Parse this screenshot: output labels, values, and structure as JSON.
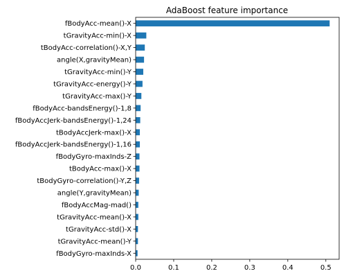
{
  "chart_data": {
    "type": "bar",
    "orientation": "horizontal",
    "title": "AdaBoost feature importance",
    "xlabel": "",
    "ylabel": "",
    "bar_color": "#1f77b4",
    "xlim": [
      0,
      0.535
    ],
    "xticks": [
      0.0,
      0.1,
      0.2,
      0.3,
      0.4,
      0.5
    ],
    "xtick_labels": [
      "0.0",
      "0.1",
      "0.2",
      "0.3",
      "0.4",
      "0.5"
    ],
    "grid": false,
    "categories": [
      "fBodyAcc-mean()-X",
      "tGravityAcc-min()-X",
      "tBodyAcc-correlation()-X,Y",
      "angle(X,gravityMean)",
      "tGravityAcc-min()-Y",
      "tGravityAcc-energy()-Y",
      "tGravityAcc-max()-Y",
      "fBodyAcc-bandsEnergy()-1,8",
      "fBodyAccJerk-bandsEnergy()-1,24",
      "tBodyAccJerk-max()-X",
      "fBodyAccJerk-bandsEnergy()-1,16",
      "fBodyGyro-maxInds-Z",
      "tBodyAcc-max()-X",
      "tBodyGyro-correlation()-Y,Z",
      "angle(Y,gravityMean)",
      "fBodyAccMag-mad()",
      "tGravityAcc-mean()-X",
      "tGravityAcc-std()-X",
      "tGravityAcc-mean()-Y",
      "fBodyGyro-maxInds-X"
    ],
    "values": [
      0.51,
      0.028,
      0.024,
      0.022,
      0.02,
      0.018,
      0.015,
      0.013,
      0.012,
      0.011,
      0.011,
      0.01,
      0.01,
      0.009,
      0.008,
      0.007,
      0.007,
      0.006,
      0.006,
      0.005
    ]
  }
}
